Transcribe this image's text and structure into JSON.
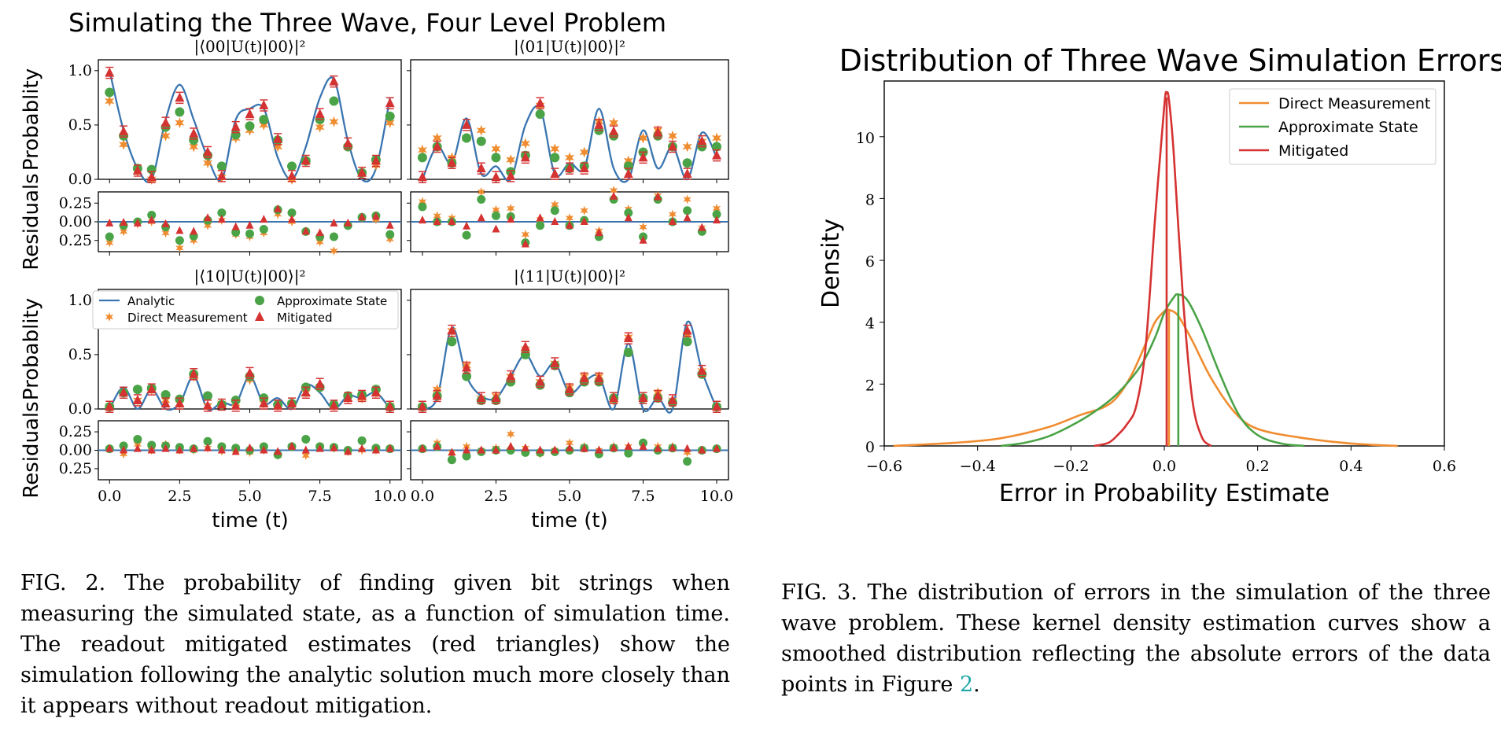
{
  "figure2": {
    "title": "Simulating the Three Wave, Four Level Problem",
    "ylabel_prob": "Probablity",
    "ylabel_resid": "Residuals",
    "xlabel": "time (t)",
    "colors": {
      "analytic": "#3a75b0",
      "direct": "#f08c30",
      "approx": "#4aa346",
      "mitigated": "#d53232"
    },
    "legend": [
      "Analytic",
      "Direct Measurement",
      "Approximate State",
      "Mitigated"
    ],
    "chart_data": [
      {
        "type": "line",
        "title": "|⟨00|U(t)|00⟩|²",
        "xlim": [
          -0.4,
          10.4
        ],
        "ylim": [
          0,
          1.1
        ],
        "x": [
          0,
          0.5,
          1,
          1.5,
          2,
          2.5,
          3,
          3.5,
          4,
          4.5,
          5,
          5.5,
          6,
          6.5,
          7,
          7.5,
          8,
          8.5,
          9,
          9.5,
          10
        ],
        "analytic": [
          1.0,
          0.45,
          0.1,
          0.0,
          0.55,
          0.87,
          0.55,
          0.2,
          0.0,
          0.55,
          0.65,
          0.65,
          0.2,
          0.0,
          0.3,
          0.75,
          0.92,
          0.35,
          0.0,
          0.1,
          0.75
        ],
        "direct": [
          0.72,
          0.32,
          0.07,
          0.0,
          0.4,
          0.52,
          0.3,
          0.15,
          0.02,
          0.38,
          0.45,
          0.5,
          0.3,
          0.0,
          0.17,
          0.48,
          0.53,
          0.3,
          0.05,
          0.13,
          0.52
        ],
        "approx": [
          0.8,
          0.4,
          0.1,
          0.09,
          0.48,
          0.62,
          0.36,
          0.22,
          0.12,
          0.41,
          0.49,
          0.55,
          0.36,
          0.12,
          0.17,
          0.55,
          0.72,
          0.3,
          0.06,
          0.18,
          0.58
        ],
        "mitigated": [
          0.98,
          0.44,
          0.08,
          0.02,
          0.52,
          0.75,
          0.42,
          0.25,
          0.03,
          0.48,
          0.6,
          0.68,
          0.37,
          0.03,
          0.17,
          0.6,
          0.9,
          0.33,
          0.06,
          0.17,
          0.7
        ],
        "resid_direct": [
          -0.28,
          -0.13,
          -0.03,
          0.0,
          -0.15,
          -0.35,
          -0.25,
          -0.05,
          0.02,
          -0.17,
          -0.2,
          -0.15,
          0.1,
          0.0,
          -0.13,
          -0.27,
          -0.39,
          -0.05,
          0.05,
          0.03,
          -0.23
        ],
        "resid_approx": [
          -0.2,
          -0.05,
          0.0,
          0.09,
          -0.07,
          -0.25,
          -0.19,
          0.02,
          0.12,
          -0.14,
          -0.16,
          -0.1,
          0.16,
          0.12,
          -0.13,
          -0.2,
          -0.2,
          -0.05,
          0.06,
          0.08,
          -0.17
        ],
        "resid_mitigated": [
          -0.02,
          -0.01,
          -0.02,
          0.02,
          -0.03,
          -0.12,
          -0.13,
          0.05,
          0.03,
          -0.07,
          -0.05,
          0.03,
          0.17,
          0.03,
          -0.13,
          -0.15,
          -0.02,
          -0.02,
          0.06,
          0.07,
          -0.05
        ]
      },
      {
        "type": "line",
        "title": "|⟨01|U(t)|00⟩|²",
        "xlim": [
          -0.4,
          10.4
        ],
        "ylim": [
          0,
          1.1
        ],
        "x": [
          0,
          0.5,
          1,
          1.5,
          2,
          2.5,
          3,
          3.5,
          4,
          4.5,
          5,
          5.5,
          6,
          6.5,
          7,
          7.5,
          8,
          8.5,
          9,
          9.5,
          10
        ],
        "analytic": [
          0.0,
          0.3,
          0.15,
          0.56,
          0.05,
          0.12,
          0.0,
          0.5,
          0.65,
          0.05,
          0.15,
          0.1,
          0.65,
          0.1,
          0.0,
          0.45,
          0.1,
          0.3,
          0.0,
          0.43,
          0.2
        ],
        "direct": [
          0.27,
          0.38,
          0.2,
          0.38,
          0.45,
          0.28,
          0.18,
          0.33,
          0.68,
          0.28,
          0.2,
          0.25,
          0.53,
          0.52,
          0.17,
          0.38,
          0.45,
          0.4,
          0.3,
          0.35,
          0.38
        ],
        "approx": [
          0.2,
          0.3,
          0.15,
          0.38,
          0.35,
          0.2,
          0.07,
          0.22,
          0.6,
          0.2,
          0.1,
          0.12,
          0.45,
          0.4,
          0.12,
          0.25,
          0.4,
          0.3,
          0.15,
          0.3,
          0.3
        ],
        "mitigated": [
          0.02,
          0.3,
          0.15,
          0.5,
          0.1,
          0.02,
          0.03,
          0.2,
          0.7,
          0.05,
          0.1,
          0.1,
          0.5,
          0.44,
          0.05,
          0.2,
          0.43,
          0.3,
          0.05,
          0.35,
          0.22
        ],
        "resid_direct": [
          0.27,
          0.08,
          0.05,
          -0.18,
          0.4,
          0.16,
          0.18,
          -0.17,
          0.03,
          0.23,
          0.05,
          0.15,
          -0.12,
          0.42,
          0.17,
          -0.07,
          0.35,
          0.1,
          0.3,
          -0.08,
          0.18
        ],
        "resid_approx": [
          0.2,
          0.0,
          0.0,
          -0.18,
          0.3,
          0.08,
          0.07,
          -0.28,
          -0.05,
          0.15,
          -0.05,
          0.02,
          -0.2,
          0.3,
          0.12,
          -0.2,
          0.3,
          0.0,
          0.15,
          -0.13,
          0.1
        ],
        "resid_mitigated": [
          0.02,
          0.0,
          0.0,
          -0.06,
          0.05,
          -0.1,
          0.03,
          -0.3,
          0.05,
          0.0,
          -0.05,
          0.0,
          -0.15,
          0.34,
          0.05,
          -0.25,
          0.33,
          0.0,
          0.05,
          -0.08,
          0.02
        ]
      },
      {
        "type": "line",
        "title": "|⟨10|U(t)|00⟩|²",
        "xlim": [
          -0.4,
          10.4
        ],
        "ylim": [
          0,
          1.1
        ],
        "x": [
          0,
          0.5,
          1,
          1.5,
          2,
          2.5,
          3,
          3.5,
          4,
          4.5,
          5,
          5.5,
          6,
          6.5,
          7,
          7.5,
          8,
          8.5,
          9,
          9.5,
          10
        ],
        "analytic": [
          0.0,
          0.2,
          0.0,
          0.18,
          0.0,
          0.05,
          0.3,
          0.0,
          0.06,
          0.05,
          0.3,
          0.05,
          0.1,
          0.0,
          0.22,
          0.15,
          0.0,
          0.12,
          0.1,
          0.15,
          0.0
        ],
        "direct": [
          0.02,
          0.15,
          0.08,
          0.18,
          0.08,
          0.05,
          0.3,
          0.03,
          0.05,
          0.05,
          0.27,
          0.05,
          0.03,
          0.05,
          0.15,
          0.2,
          0.03,
          0.1,
          0.1,
          0.15,
          0.03
        ],
        "approx": [
          0.02,
          0.15,
          0.18,
          0.19,
          0.13,
          0.09,
          0.32,
          0.12,
          0.04,
          0.08,
          0.3,
          0.1,
          0.04,
          0.05,
          0.2,
          0.2,
          0.04,
          0.12,
          0.13,
          0.18,
          0.02
        ],
        "mitigated": [
          0.02,
          0.15,
          0.08,
          0.18,
          0.05,
          0.05,
          0.32,
          0.03,
          0.04,
          0.03,
          0.33,
          0.05,
          0.03,
          0.05,
          0.15,
          0.23,
          0.03,
          0.1,
          0.12,
          0.15,
          0.02
        ],
        "resid_direct": [
          0.02,
          -0.05,
          0.08,
          0.0,
          0.08,
          0.0,
          0.0,
          0.03,
          -0.01,
          0.0,
          -0.03,
          0.0,
          -0.07,
          0.05,
          -0.07,
          0.05,
          0.03,
          -0.02,
          0.0,
          0.0,
          0.03
        ],
        "resid_approx": [
          0.02,
          0.06,
          0.15,
          0.07,
          0.06,
          0.04,
          0.02,
          0.12,
          0.05,
          0.03,
          0.0,
          0.05,
          -0.06,
          0.05,
          0.15,
          0.05,
          0.04,
          0.0,
          0.13,
          0.03,
          0.02
        ],
        "resid_mitigated": [
          0.02,
          0.0,
          0.02,
          0.0,
          0.02,
          0.0,
          0.02,
          0.03,
          0.0,
          -0.02,
          0.03,
          0.0,
          -0.02,
          0.05,
          0.0,
          0.02,
          0.03,
          -0.02,
          0.02,
          0.0,
          0.02
        ]
      },
      {
        "type": "line",
        "title": "|⟨11|U(t)|00⟩|²",
        "xlim": [
          -0.4,
          10.4
        ],
        "ylim": [
          0,
          1.1
        ],
        "x": [
          0,
          0.5,
          1,
          1.5,
          2,
          2.5,
          3,
          3.5,
          4,
          4.5,
          5,
          5.5,
          6,
          6.5,
          7,
          7.5,
          8,
          8.5,
          9,
          9.5,
          10
        ],
        "analytic": [
          0.0,
          0.1,
          0.75,
          0.3,
          0.12,
          0.1,
          0.3,
          0.5,
          0.3,
          0.42,
          0.15,
          0.25,
          0.3,
          0.0,
          0.6,
          0.0,
          0.1,
          0.0,
          0.8,
          0.35,
          0.0
        ],
        "direct": [
          0.02,
          0.18,
          0.72,
          0.4,
          0.1,
          0.12,
          0.3,
          0.55,
          0.25,
          0.42,
          0.2,
          0.3,
          0.3,
          0.08,
          0.66,
          0.1,
          0.15,
          0.08,
          0.68,
          0.35,
          0.02
        ],
        "approx": [
          0.02,
          0.12,
          0.62,
          0.3,
          0.08,
          0.08,
          0.25,
          0.5,
          0.22,
          0.4,
          0.15,
          0.25,
          0.25,
          0.1,
          0.52,
          0.1,
          0.1,
          0.06,
          0.62,
          0.32,
          0.02
        ],
        "mitigated": [
          0.02,
          0.12,
          0.72,
          0.38,
          0.1,
          0.1,
          0.3,
          0.57,
          0.25,
          0.42,
          0.18,
          0.28,
          0.28,
          0.1,
          0.65,
          0.1,
          0.12,
          0.08,
          0.72,
          0.35,
          0.02
        ],
        "resid_direct": [
          0.02,
          0.1,
          -0.03,
          0.05,
          0.0,
          0.03,
          0.22,
          0.03,
          -0.05,
          0.0,
          0.1,
          0.05,
          0.0,
          0.05,
          0.05,
          0.1,
          0.05,
          0.05,
          -0.03,
          0.0,
          0.02
        ],
        "resid_approx": [
          0.02,
          0.05,
          -0.13,
          -0.08,
          -0.02,
          0.0,
          0.0,
          -0.03,
          -0.03,
          -0.02,
          0.0,
          0.03,
          -0.05,
          0.03,
          -0.04,
          0.1,
          0.0,
          0.03,
          -0.15,
          0.0,
          0.02
        ],
        "resid_mitigated": [
          0.02,
          0.05,
          -0.03,
          0.0,
          0.0,
          0.0,
          0.05,
          0.03,
          0.0,
          0.0,
          0.03,
          0.02,
          0.0,
          0.03,
          0.05,
          0.05,
          0.02,
          0.03,
          0.02,
          0.0,
          0.02
        ]
      }
    ],
    "prob_ticks": [
      "1.0",
      "0.5",
      "0.0"
    ],
    "resid_ticks": [
      "0.25",
      "0.00",
      "0.25"
    ],
    "x_ticks": [
      "0.0",
      "2.5",
      "5.0",
      "7.5",
      "10.0"
    ],
    "caption": "FIG. 2. The probability of finding given bit strings when measuring the simulated state, as a function of simulation time. The readout mitigated estimates (red triangles) show the simulation following the analytic solution much more closely than it appears without readout mitigation."
  },
  "figure3": {
    "chart_data": {
      "type": "line",
      "title": "Distribution of Three Wave Simulation Errors",
      "xlabel": "Error in Probability Estimate",
      "ylabel": "Density",
      "xlim": [
        -0.6,
        0.6
      ],
      "ylim": [
        0,
        11.8
      ],
      "x_ticks": [
        "−0.6",
        "−0.4",
        "−0.2",
        "0.0",
        "0.2",
        "0.4",
        "0.6"
      ],
      "y_ticks": [
        "0",
        "2",
        "4",
        "6",
        "8",
        "10"
      ],
      "legend_position": "top-right",
      "series": [
        {
          "name": "Direct Measurement",
          "color": "#f08c30",
          "x": [
            -0.58,
            -0.45,
            -0.35,
            -0.25,
            -0.18,
            -0.13,
            -0.1,
            -0.07,
            -0.04,
            -0.02,
            0.0,
            0.01,
            0.03,
            0.06,
            0.1,
            0.15,
            0.2,
            0.3,
            0.4,
            0.5
          ],
          "y": [
            0.0,
            0.1,
            0.25,
            0.6,
            1.0,
            1.25,
            1.6,
            2.3,
            3.3,
            4.0,
            4.35,
            4.4,
            4.2,
            3.4,
            2.2,
            1.1,
            0.55,
            0.25,
            0.08,
            0.0
          ]
        },
        {
          "name": "Approximate State",
          "color": "#4aa346",
          "x": [
            -0.35,
            -0.3,
            -0.25,
            -0.2,
            -0.15,
            -0.1,
            -0.05,
            -0.02,
            0.0,
            0.02,
            0.03,
            0.05,
            0.08,
            0.12,
            0.16,
            0.2,
            0.25,
            0.3
          ],
          "y": [
            0.0,
            0.1,
            0.3,
            0.65,
            1.1,
            1.7,
            2.6,
            3.5,
            4.3,
            4.8,
            4.9,
            4.7,
            3.8,
            2.3,
            1.0,
            0.35,
            0.08,
            0.0
          ]
        },
        {
          "name": "Mitigated",
          "color": "#d53232",
          "x": [
            -0.15,
            -0.12,
            -0.1,
            -0.08,
            -0.06,
            -0.04,
            -0.02,
            0.0,
            0.005,
            0.01,
            0.02,
            0.04,
            0.06,
            0.08,
            0.1
          ],
          "y": [
            0.0,
            0.1,
            0.35,
            0.7,
            1.3,
            3.2,
            7.3,
            11.0,
            11.4,
            11.2,
            9.5,
            4.8,
            1.5,
            0.3,
            0.0
          ]
        }
      ]
    },
    "caption_before": "FIG. 3.  The distribution of errors in the simulation of the three wave problem. These kernel density estimation curves show a smoothed distribution reflecting the absolute errors of the data points in Figure ",
    "caption_ref": "2",
    "caption_after": "."
  }
}
